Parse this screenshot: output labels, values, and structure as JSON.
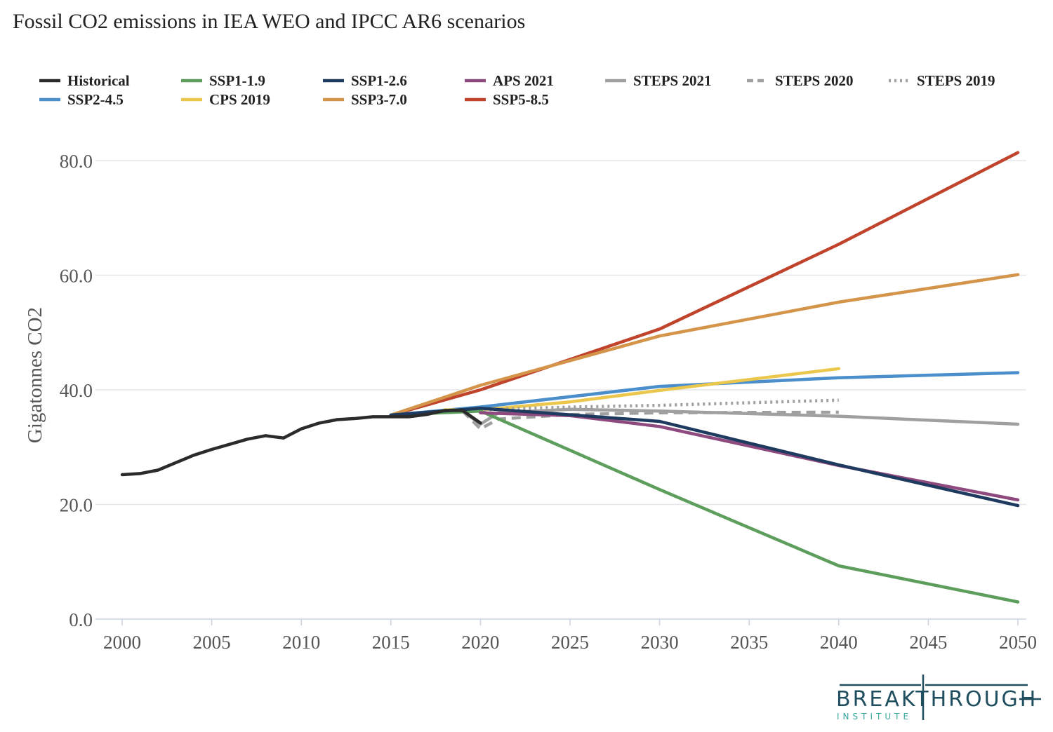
{
  "chart_data": {
    "type": "line",
    "title": "Fossil CO2 emissions in IEA WEO and IPCC AR6 scenarios",
    "ylabel": "Gigatonnes CO2",
    "xlabel": "",
    "xlim": [
      2000,
      2050
    ],
    "ylim": [
      0,
      80
    ],
    "x_ticks": [
      2000,
      2005,
      2010,
      2015,
      2020,
      2025,
      2030,
      2035,
      2040,
      2045,
      2050
    ],
    "y_ticks": [
      "0.0",
      "20.0",
      "40.0",
      "60.0",
      "80.0"
    ],
    "grid": "horizontal",
    "legend_placement": "top",
    "series": [
      {
        "name": "Historical",
        "color": "#2b2b2b",
        "dash": "solid",
        "points": [
          [
            2000,
            25.2
          ],
          [
            2001,
            25.4
          ],
          [
            2002,
            26.0
          ],
          [
            2003,
            27.3
          ],
          [
            2004,
            28.6
          ],
          [
            2005,
            29.6
          ],
          [
            2006,
            30.5
          ],
          [
            2007,
            31.4
          ],
          [
            2008,
            32.0
          ],
          [
            2009,
            31.6
          ],
          [
            2010,
            33.2
          ],
          [
            2011,
            34.2
          ],
          [
            2012,
            34.8
          ],
          [
            2013,
            35.0
          ],
          [
            2014,
            35.3
          ],
          [
            2015,
            35.3
          ],
          [
            2016,
            35.3
          ],
          [
            2017,
            35.7
          ],
          [
            2018,
            36.4
          ],
          [
            2019,
            36.4
          ],
          [
            2020,
            34.2
          ]
        ]
      },
      {
        "name": "SSP1-1.9",
        "color": "#5d9e5d",
        "dash": "solid",
        "points": [
          [
            2015,
            35.6
          ],
          [
            2020,
            36.3
          ],
          [
            2030,
            22.6
          ],
          [
            2040,
            9.3
          ],
          [
            2050,
            3.0
          ]
        ]
      },
      {
        "name": "SSP1-2.6",
        "color": "#1f3a5f",
        "dash": "solid",
        "points": [
          [
            2015,
            35.6
          ],
          [
            2020,
            36.8
          ],
          [
            2030,
            34.5
          ],
          [
            2040,
            26.9
          ],
          [
            2050,
            19.8
          ]
        ]
      },
      {
        "name": "APS 2021",
        "color": "#8e4a7e",
        "dash": "solid",
        "points": [
          [
            2020,
            36.0
          ],
          [
            2025,
            35.5
          ],
          [
            2030,
            33.6
          ],
          [
            2040,
            26.8
          ],
          [
            2050,
            20.8
          ]
        ]
      },
      {
        "name": "STEPS 2021",
        "color": "#a0a0a0",
        "dash": "solid",
        "points": [
          [
            2019,
            36.3
          ],
          [
            2020,
            34.0
          ],
          [
            2021,
            36.0
          ],
          [
            2025,
            36.6
          ],
          [
            2030,
            36.3
          ],
          [
            2040,
            35.4
          ],
          [
            2050,
            34.0
          ]
        ]
      },
      {
        "name": "STEPS 2020",
        "color": "#a0a0a0",
        "dash": "dashed",
        "points": [
          [
            2019,
            36.3
          ],
          [
            2020,
            33.2
          ],
          [
            2021,
            34.9
          ],
          [
            2025,
            35.7
          ],
          [
            2030,
            36.0
          ],
          [
            2040,
            36.1
          ]
        ]
      },
      {
        "name": "STEPS 2019",
        "color": "#a0a0a0",
        "dash": "dotted",
        "points": [
          [
            2018,
            36.4
          ],
          [
            2020,
            36.5
          ],
          [
            2025,
            37.0
          ],
          [
            2030,
            37.3
          ],
          [
            2040,
            38.2
          ]
        ]
      },
      {
        "name": "SSP2-4.5",
        "color": "#4a8fcc",
        "dash": "solid",
        "points": [
          [
            2015,
            35.6
          ],
          [
            2020,
            37.0
          ],
          [
            2030,
            40.6
          ],
          [
            2040,
            42.1
          ],
          [
            2050,
            43.0
          ]
        ]
      },
      {
        "name": "CPS 2019",
        "color": "#ebc84d",
        "dash": "solid",
        "points": [
          [
            2018,
            36.5
          ],
          [
            2020,
            36.5
          ],
          [
            2025,
            37.9
          ],
          [
            2030,
            39.9
          ],
          [
            2040,
            43.7
          ]
        ]
      },
      {
        "name": "SSP3-7.0",
        "color": "#d4944a",
        "dash": "solid",
        "points": [
          [
            2015,
            35.6
          ],
          [
            2020,
            40.8
          ],
          [
            2030,
            49.4
          ],
          [
            2040,
            55.3
          ],
          [
            2050,
            60.1
          ]
        ]
      },
      {
        "name": "SSP5-8.5",
        "color": "#c0432c",
        "dash": "solid",
        "points": [
          [
            2015,
            35.6
          ],
          [
            2020,
            40.0
          ],
          [
            2030,
            50.6
          ],
          [
            2040,
            65.4
          ],
          [
            2050,
            81.4
          ]
        ]
      }
    ],
    "draw_order": [
      "SSP5-8.5",
      "SSP3-7.0",
      "SSP2-4.5",
      "CPS 2019",
      "STEPS 2019",
      "STEPS 2020",
      "STEPS 2021",
      "SSP1-1.9",
      "APS 2021",
      "SSP1-2.6",
      "Historical"
    ],
    "legend": [
      [
        "Historical",
        "SSP1-1.9",
        "SSP1-2.6",
        "APS 2021",
        "STEPS 2021",
        "STEPS 2020",
        "STEPS 2019"
      ],
      [
        "SSP2-4.5",
        "CPS 2019",
        "SSP3-7.0",
        "SSP5-8.5"
      ]
    ]
  },
  "logo": {
    "main": "BREAKTHROUGH",
    "sub": "INSTITUTE",
    "color": "#1f4e5f",
    "accent": "#3aa6a0"
  }
}
